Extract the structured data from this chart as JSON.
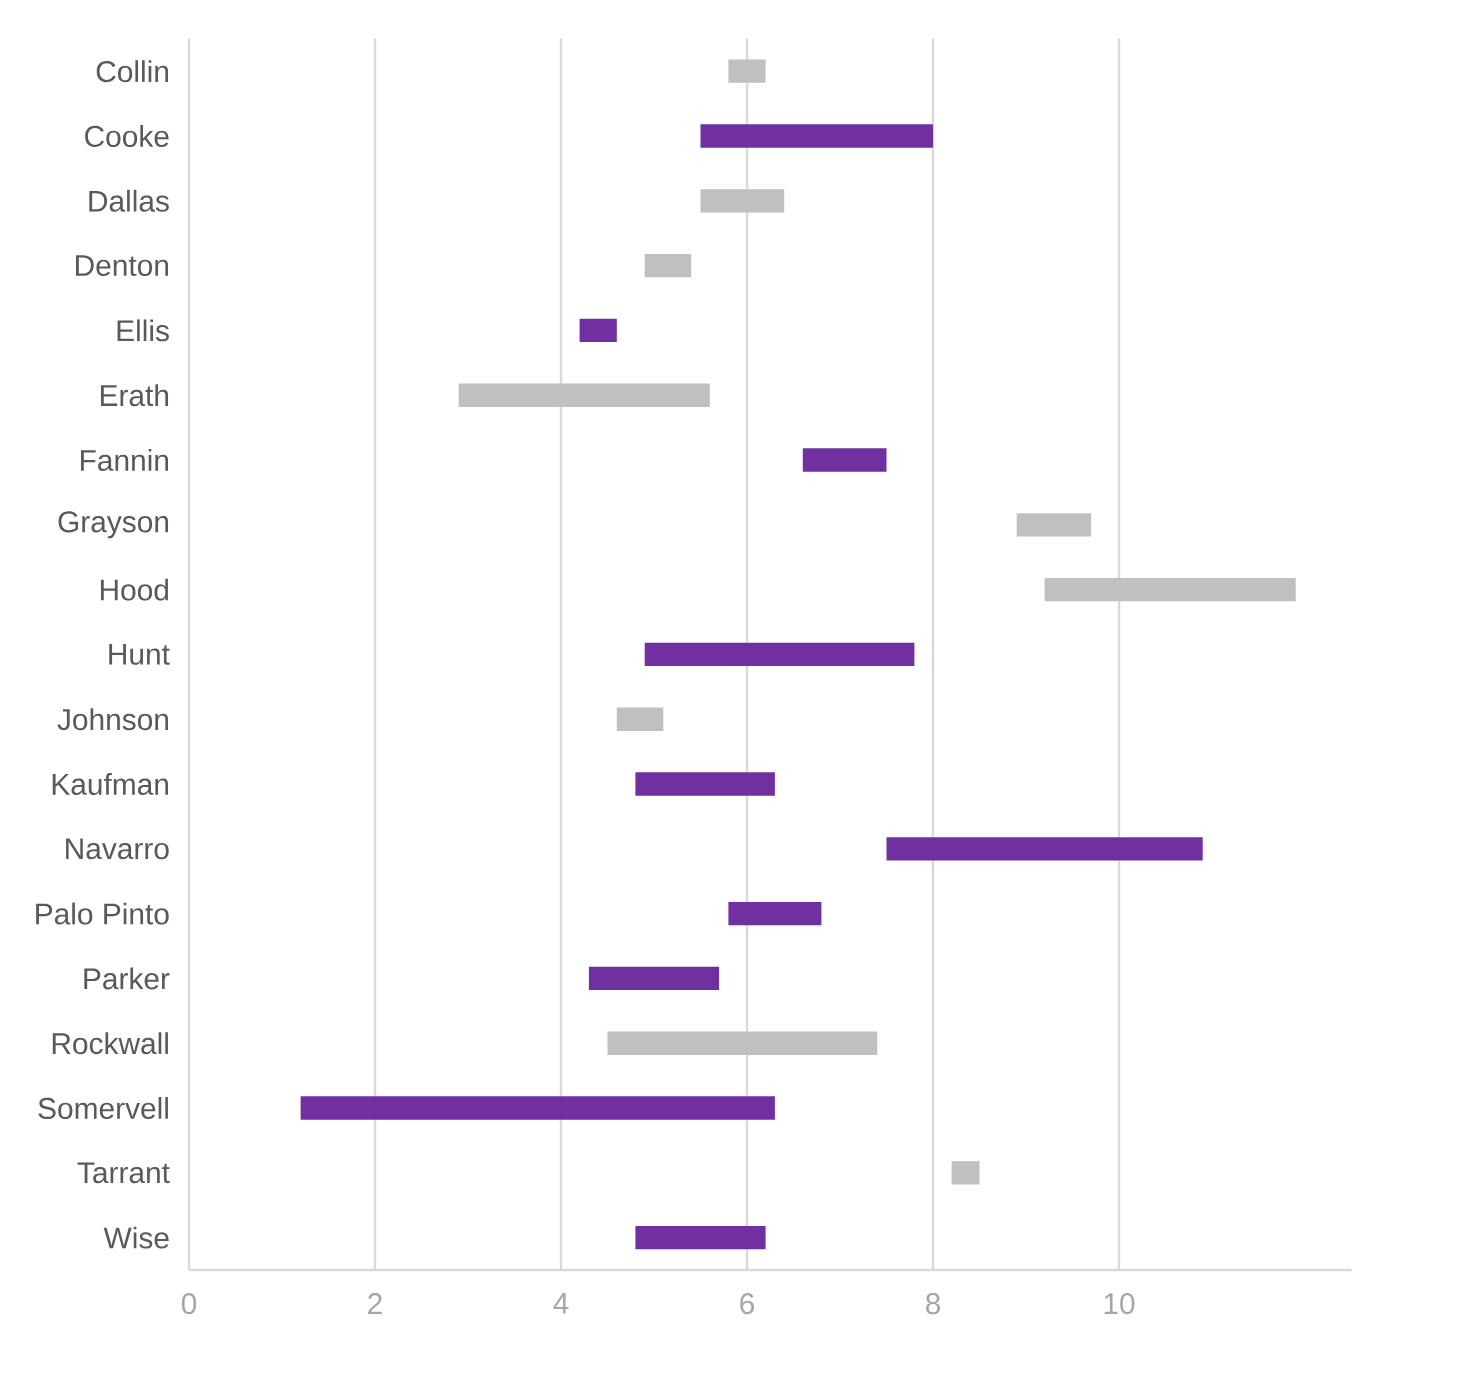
{
  "chart_data": {
    "type": "bar",
    "orientation": "horizontal",
    "categories": [
      "Collin",
      "Cooke",
      "Dallas",
      "Denton",
      "Ellis",
      "Erath",
      "Fannin",
      "Grayson",
      "Hood",
      "Hunt",
      "Johnson",
      "Kaufman",
      "Navarro",
      "Palo Pinto",
      "Parker",
      "Rockwall",
      "Somervell",
      "Tarrant",
      "Wise"
    ],
    "base": [
      6.2,
      5.5,
      6.4,
      5.4,
      4.2,
      5.6,
      6.6,
      9.7,
      11.9,
      4.9,
      5.1,
      4.8,
      7.5,
      5.8,
      4.3,
      7.4,
      1.2,
      8.5,
      4.8
    ],
    "values": [
      -0.4,
      2.5,
      -0.9,
      -0.5,
      0.4,
      -2.7,
      0.9,
      -0.8,
      -2.7,
      2.9,
      -0.5,
      1.5,
      3.4,
      1.0,
      1.4,
      -2.9,
      5.1,
      -0.3,
      1.4
    ],
    "colors": [
      "#c0c0c0",
      "#7030a0",
      "#c0c0c0",
      "#c0c0c0",
      "#7030a0",
      "#c0c0c0",
      "#7030a0",
      "#c0c0c0",
      "#c0c0c0",
      "#7030a0",
      "#c0c0c0",
      "#7030a0",
      "#7030a0",
      "#7030a0",
      "#7030a0",
      "#c0c0c0",
      "#7030a0",
      "#c0c0c0",
      "#7030a0"
    ],
    "xlim": [
      0,
      12.5
    ],
    "xticks": [
      0,
      2,
      4,
      6,
      8,
      10
    ],
    "grid": "x"
  }
}
